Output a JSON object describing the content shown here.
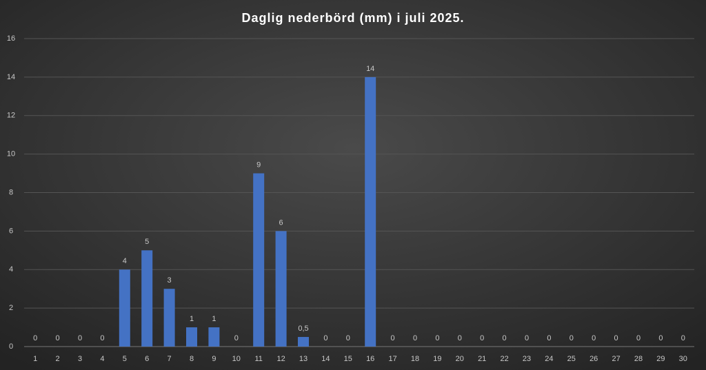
{
  "chart_data": {
    "type": "bar",
    "title": "Daglig nederbörd (mm) i juli 2025.",
    "categories": [
      "1",
      "2",
      "3",
      "4",
      "5",
      "6",
      "7",
      "8",
      "9",
      "10",
      "11",
      "12",
      "13",
      "14",
      "15",
      "16",
      "17",
      "18",
      "19",
      "20",
      "21",
      "22",
      "23",
      "24",
      "25",
      "26",
      "27",
      "28",
      "29",
      "30"
    ],
    "values": [
      0,
      0,
      0,
      0,
      4,
      5,
      3,
      1,
      1,
      0,
      9,
      6,
      0.5,
      0,
      0,
      14,
      0,
      0,
      0,
      0,
      0,
      0,
      0,
      0,
      0,
      0,
      0,
      0,
      0,
      0
    ],
    "value_labels": [
      "0",
      "0",
      "0",
      "0",
      "4",
      "5",
      "3",
      "1",
      "1",
      "0",
      "9",
      "6",
      "0,5",
      "0",
      "0",
      "14",
      "0",
      "0",
      "0",
      "0",
      "0",
      "0",
      "0",
      "0",
      "0",
      "0",
      "0",
      "0",
      "0",
      "0"
    ],
    "color": "#4472c4",
    "ylim": [
      0,
      16
    ],
    "yticks": [
      0,
      2,
      4,
      6,
      8,
      10,
      12,
      14,
      16
    ],
    "grid": true
  }
}
